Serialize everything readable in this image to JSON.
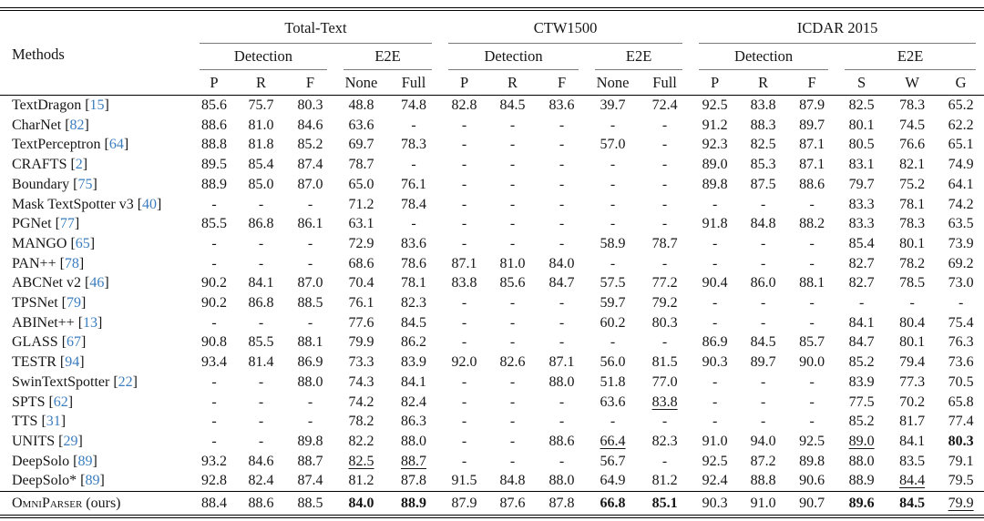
{
  "colors": {
    "citation_blue": "#3b7dbf",
    "rule_black": "#000000",
    "cmidrule_gray": "#7a7a7a"
  },
  "table": {
    "methods_label": "Methods",
    "groups": [
      {
        "label": "Total-Text",
        "sub": [
          {
            "label": "Detection",
            "cols": [
              "P",
              "R",
              "F"
            ]
          },
          {
            "label": "E2E",
            "cols": [
              "None",
              "Full"
            ]
          }
        ]
      },
      {
        "label": "CTW1500",
        "sub": [
          {
            "label": "Detection",
            "cols": [
              "P",
              "R",
              "F"
            ]
          },
          {
            "label": "E2E",
            "cols": [
              "None",
              "Full"
            ]
          }
        ]
      },
      {
        "label": "ICDAR 2015",
        "sub": [
          {
            "label": "Detection",
            "cols": [
              "P",
              "R",
              "F"
            ]
          },
          {
            "label": "E2E",
            "cols": [
              "S",
              "W",
              "G"
            ]
          }
        ]
      }
    ],
    "mark_legend": {
      "b": "best (bold)",
      "u": "second-best (underline)"
    },
    "rows": [
      {
        "method": "TextDragon",
        "cite": "15",
        "cells": [
          "85.6",
          "75.7",
          "80.3",
          "48.8",
          "74.8",
          "82.8",
          "84.5",
          "83.6",
          "39.7",
          "72.4",
          "92.5",
          "83.8",
          "87.9",
          "82.5",
          "78.3",
          "65.2"
        ]
      },
      {
        "method": "CharNet",
        "cite": "82",
        "cells": [
          "88.6",
          "81.0",
          "84.6",
          "63.6",
          "-",
          "-",
          "-",
          "-",
          "-",
          "-",
          "91.2",
          "88.3",
          "89.7",
          "80.1",
          "74.5",
          "62.2"
        ]
      },
      {
        "method": "TextPerceptron",
        "cite": "64",
        "cells": [
          "88.8",
          "81.8",
          "85.2",
          "69.7",
          "78.3",
          "-",
          "-",
          "-",
          "57.0",
          "-",
          "92.3",
          "82.5",
          "87.1",
          "80.5",
          "76.6",
          "65.1"
        ]
      },
      {
        "method": "CRAFTS",
        "cite": "2",
        "cells": [
          "89.5",
          "85.4",
          "87.4",
          "78.7",
          "-",
          "-",
          "-",
          "-",
          "-",
          "-",
          "89.0",
          "85.3",
          "87.1",
          "83.1",
          "82.1",
          "74.9"
        ]
      },
      {
        "method": "Boundary",
        "cite": "75",
        "cells": [
          "88.9",
          "85.0",
          "87.0",
          "65.0",
          "76.1",
          "-",
          "-",
          "-",
          "-",
          "-",
          "89.8",
          "87.5",
          "88.6",
          "79.7",
          "75.2",
          "64.1"
        ]
      },
      {
        "method": "Mask TextSpotter v3",
        "cite": "40",
        "cells": [
          "-",
          "-",
          "-",
          "71.2",
          "78.4",
          "-",
          "-",
          "-",
          "-",
          "-",
          "-",
          "-",
          "-",
          "83.3",
          "78.1",
          "74.2"
        ]
      },
      {
        "method": "PGNet",
        "cite": "77",
        "cells": [
          "85.5",
          "86.8",
          "86.1",
          "63.1",
          "-",
          "-",
          "-",
          "-",
          "-",
          "-",
          "91.8",
          "84.8",
          "88.2",
          "83.3",
          "78.3",
          "63.5"
        ]
      },
      {
        "method": "MANGO",
        "cite": "65",
        "cells": [
          "-",
          "-",
          "-",
          "72.9",
          "83.6",
          "-",
          "-",
          "-",
          "58.9",
          "78.7",
          "-",
          "-",
          "-",
          "85.4",
          "80.1",
          "73.9"
        ]
      },
      {
        "method": "PAN++",
        "cite": "78",
        "cells": [
          "-",
          "-",
          "-",
          "68.6",
          "78.6",
          "87.1",
          "81.0",
          "84.0",
          "-",
          "-",
          "-",
          "-",
          "-",
          "82.7",
          "78.2",
          "69.2"
        ]
      },
      {
        "method": "ABCNet v2",
        "cite": "46",
        "cells": [
          "90.2",
          "84.1",
          "87.0",
          "70.4",
          "78.1",
          "83.8",
          "85.6",
          "84.7",
          "57.5",
          "77.2",
          "90.4",
          "86.0",
          "88.1",
          "82.7",
          "78.5",
          "73.0"
        ]
      },
      {
        "method": "TPSNet",
        "cite": "79",
        "cells": [
          "90.2",
          "86.8",
          "88.5",
          "76.1",
          "82.3",
          "-",
          "-",
          "-",
          "59.7",
          "79.2",
          "-",
          "-",
          "-",
          "-",
          "-",
          "-"
        ]
      },
      {
        "method": "ABINet++",
        "cite": "13",
        "cells": [
          "-",
          "-",
          "-",
          "77.6",
          "84.5",
          "-",
          "-",
          "-",
          "60.2",
          "80.3",
          "-",
          "-",
          "-",
          "84.1",
          "80.4",
          "75.4"
        ]
      },
      {
        "method": "GLASS",
        "cite": "67",
        "cells": [
          "90.8",
          "85.5",
          "88.1",
          "79.9",
          "86.2",
          "-",
          "-",
          "-",
          "-",
          "-",
          "86.9",
          "84.5",
          "85.7",
          "84.7",
          "80.1",
          "76.3"
        ]
      },
      {
        "method": "TESTR",
        "cite": "94",
        "cells": [
          "93.4",
          "81.4",
          "86.9",
          "73.3",
          "83.9",
          "92.0",
          "82.6",
          "87.1",
          "56.0",
          "81.5",
          "90.3",
          "89.7",
          "90.0",
          "85.2",
          "79.4",
          "73.6"
        ]
      },
      {
        "method": "SwinTextSpotter",
        "cite": "22",
        "cells": [
          "-",
          "-",
          "88.0",
          "74.3",
          "84.1",
          "-",
          "-",
          "88.0",
          "51.8",
          "77.0",
          "-",
          "-",
          "-",
          "83.9",
          "77.3",
          "70.5"
        ]
      },
      {
        "method": "SPTS",
        "cite": "62",
        "cells": [
          "-",
          "-",
          "-",
          "74.2",
          "82.4",
          "-",
          "-",
          "-",
          "63.6",
          "83.8",
          "-",
          "-",
          "-",
          "77.5",
          "70.2",
          "65.8"
        ],
        "marks": {
          "9": "u"
        }
      },
      {
        "method": "TTS",
        "cite": "31",
        "cells": [
          "-",
          "-",
          "-",
          "78.2",
          "86.3",
          "-",
          "-",
          "-",
          "-",
          "-",
          "-",
          "-",
          "-",
          "85.2",
          "81.7",
          "77.4"
        ]
      },
      {
        "method": "UNITS",
        "cite": "29",
        "cells": [
          "-",
          "-",
          "89.8",
          "82.2",
          "88.0",
          "-",
          "-",
          "88.6",
          "66.4",
          "82.3",
          "91.0",
          "94.0",
          "92.5",
          "89.0",
          "84.1",
          "80.3"
        ],
        "marks": {
          "8": "u",
          "13": "u",
          "15": "b"
        }
      },
      {
        "method": "DeepSolo",
        "cite": "89",
        "cells": [
          "93.2",
          "84.6",
          "88.7",
          "82.5",
          "88.7",
          "-",
          "-",
          "-",
          "56.7",
          "-",
          "92.5",
          "87.2",
          "89.8",
          "88.0",
          "83.5",
          "79.1"
        ],
        "marks": {
          "3": "u",
          "4": "u"
        }
      },
      {
        "method": "DeepSolo*",
        "cite": "89",
        "cells": [
          "92.8",
          "82.4",
          "87.4",
          "81.2",
          "87.8",
          "91.5",
          "84.8",
          "88.0",
          "64.9",
          "81.2",
          "92.4",
          "88.8",
          "90.6",
          "88.9",
          "84.4",
          "79.5"
        ],
        "marks": {
          "14": "u"
        }
      },
      {
        "method": "OmniParser",
        "suffix": "(ours)",
        "smallcaps": true,
        "final": true,
        "cells": [
          "88.4",
          "88.6",
          "88.5",
          "84.0",
          "88.9",
          "87.9",
          "87.6",
          "87.8",
          "66.8",
          "85.1",
          "90.3",
          "91.0",
          "90.7",
          "89.6",
          "84.5",
          "79.9"
        ],
        "marks": {
          "3": "b",
          "4": "b",
          "8": "b",
          "9": "b",
          "13": "b",
          "14": "b",
          "15": "u"
        }
      }
    ]
  }
}
